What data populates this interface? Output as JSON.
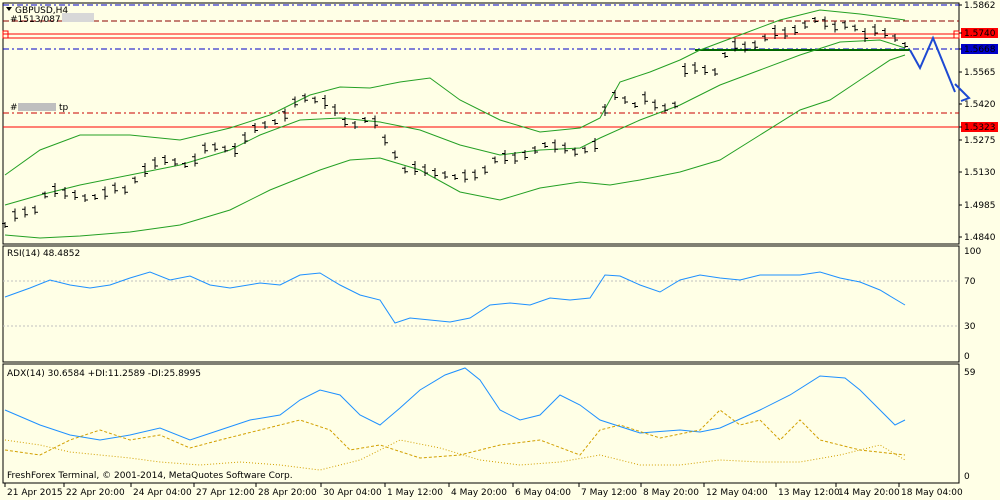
{
  "window": {
    "title": "GBPUSD,H4"
  },
  "ind": {
    "rsi_label": "RSI(14) 48.4852",
    "adx_label": "ADX(14) 30.6584 +DI:11.2589 -DI:25.8995",
    "copyright": "FreshForex Terminal, © 2001-2014, MetaQuotes Software Corp.",
    "obj_sl": "#1513/087 sl",
    "obj_tp": "#",
    "obj_tp_suffix": "tp"
  },
  "price_axis": [
    "1.5862",
    "1.5740",
    "1.5668",
    "1.5565",
    "1.5420",
    "1.5323",
    "1.5275",
    "1.5130",
    "1.4985",
    "1.4840"
  ],
  "rsi_axis": [
    "100",
    "70",
    "30",
    "0"
  ],
  "adx_axis": [
    "59",
    "0"
  ],
  "time_axis": [
    "21 Apr 2015",
    "22 Apr 20:00",
    "24 Apr 04:00",
    "27 Apr 12:00",
    "28 Apr 20:00",
    "30 Apr 04:00",
    "1 May 12:00",
    "4 May 20:00",
    "6 May 04:00",
    "7 May 12:00",
    "8 May 20:00",
    "12 May 04:00",
    "13 May 12:00",
    "14 May 20:00",
    "18 May 04:00"
  ],
  "colors": {
    "background": "#ffffe6",
    "bollinger": "#24a024",
    "rsi_line": "#1e90ff",
    "adx_line": "#1e90ff",
    "di_dotted": "#d2a000",
    "red_level": "#ff0000",
    "blue_level": "#0000c8",
    "arrow": "#1e4ad2",
    "support_line": "#006400"
  },
  "icons": [
    "menu-triangle-icon",
    "forecast-arrow-icon"
  ]
}
